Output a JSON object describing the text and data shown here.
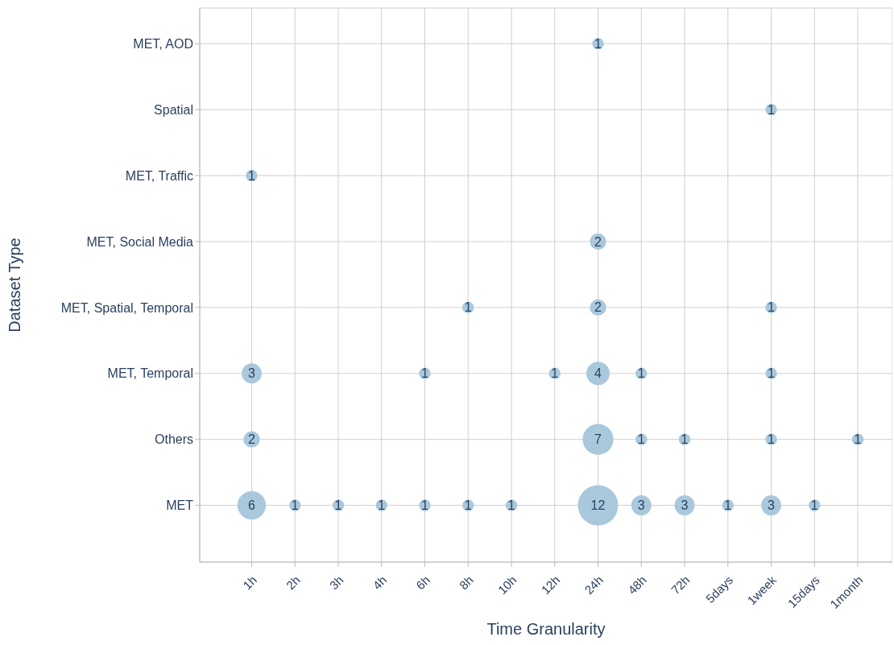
{
  "chart_data": {
    "type": "heatmap",
    "xlabel": "Time Granularity",
    "ylabel": "Dataset Type",
    "categories": [
      "1h",
      "2h",
      "3h",
      "4h",
      "6h",
      "8h",
      "10h",
      "12h",
      "24h",
      "48h",
      "72h",
      "5days",
      "1week",
      "15days",
      "1month"
    ],
    "y_categories": [
      "MET, AOD",
      "Spatial",
      "MET, Traffic",
      "MET, Social Media",
      "MET, Spatial, Temporal",
      "MET, Temporal",
      "Others",
      "MET"
    ],
    "cells": [
      [
        null,
        null,
        null,
        null,
        null,
        null,
        null,
        null,
        1,
        null,
        null,
        null,
        null,
        null,
        null
      ],
      [
        null,
        null,
        null,
        null,
        null,
        null,
        null,
        null,
        null,
        null,
        null,
        null,
        1,
        null,
        null
      ],
      [
        1,
        null,
        null,
        null,
        null,
        null,
        null,
        null,
        null,
        null,
        null,
        null,
        null,
        null,
        null
      ],
      [
        null,
        null,
        null,
        null,
        null,
        null,
        null,
        null,
        2,
        null,
        null,
        null,
        null,
        null,
        null
      ],
      [
        null,
        null,
        null,
        null,
        null,
        1,
        null,
        null,
        2,
        null,
        null,
        null,
        1,
        null,
        null
      ],
      [
        3,
        null,
        null,
        null,
        1,
        null,
        null,
        1,
        4,
        1,
        null,
        null,
        1,
        null,
        null
      ],
      [
        2,
        null,
        null,
        null,
        null,
        null,
        null,
        null,
        7,
        1,
        1,
        null,
        1,
        null,
        1
      ],
      [
        6,
        1,
        1,
        1,
        1,
        1,
        1,
        null,
        12,
        3,
        3,
        1,
        3,
        1,
        null
      ]
    ],
    "color": "#a9c8dc",
    "data_labels": true,
    "grid": true
  }
}
